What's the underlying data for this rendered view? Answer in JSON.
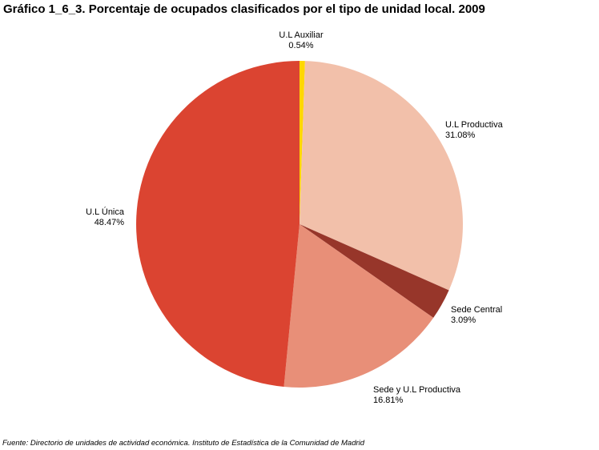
{
  "title": "Gráfico 1_6_3. Porcentaje de ocupados clasificados por el tipo de unidad local. 2009",
  "source": "Fuente: Directorio de unidades de actividad económica. Instituto de Estadística de la Comunidad de Madrid",
  "chart_data": {
    "type": "pie",
    "start": "top, clockwise",
    "slices": [
      {
        "label": "U.L Auxiliar",
        "value": 0.54,
        "display": "0.54%",
        "color": "#ffd700"
      },
      {
        "label": "U.L Productiva",
        "value": 31.08,
        "display": "31.08%",
        "color": "#f2c0aa"
      },
      {
        "label": "Sede Central",
        "value": 3.09,
        "display": "3.09%",
        "color": "#97362a"
      },
      {
        "label": "Sede y U.L Productiva",
        "value": 16.81,
        "display": "16.81%",
        "color": "#e88f78"
      },
      {
        "label": "U.L Única",
        "value": 48.47,
        "display": "48.47%",
        "color": "#db4431"
      }
    ]
  }
}
